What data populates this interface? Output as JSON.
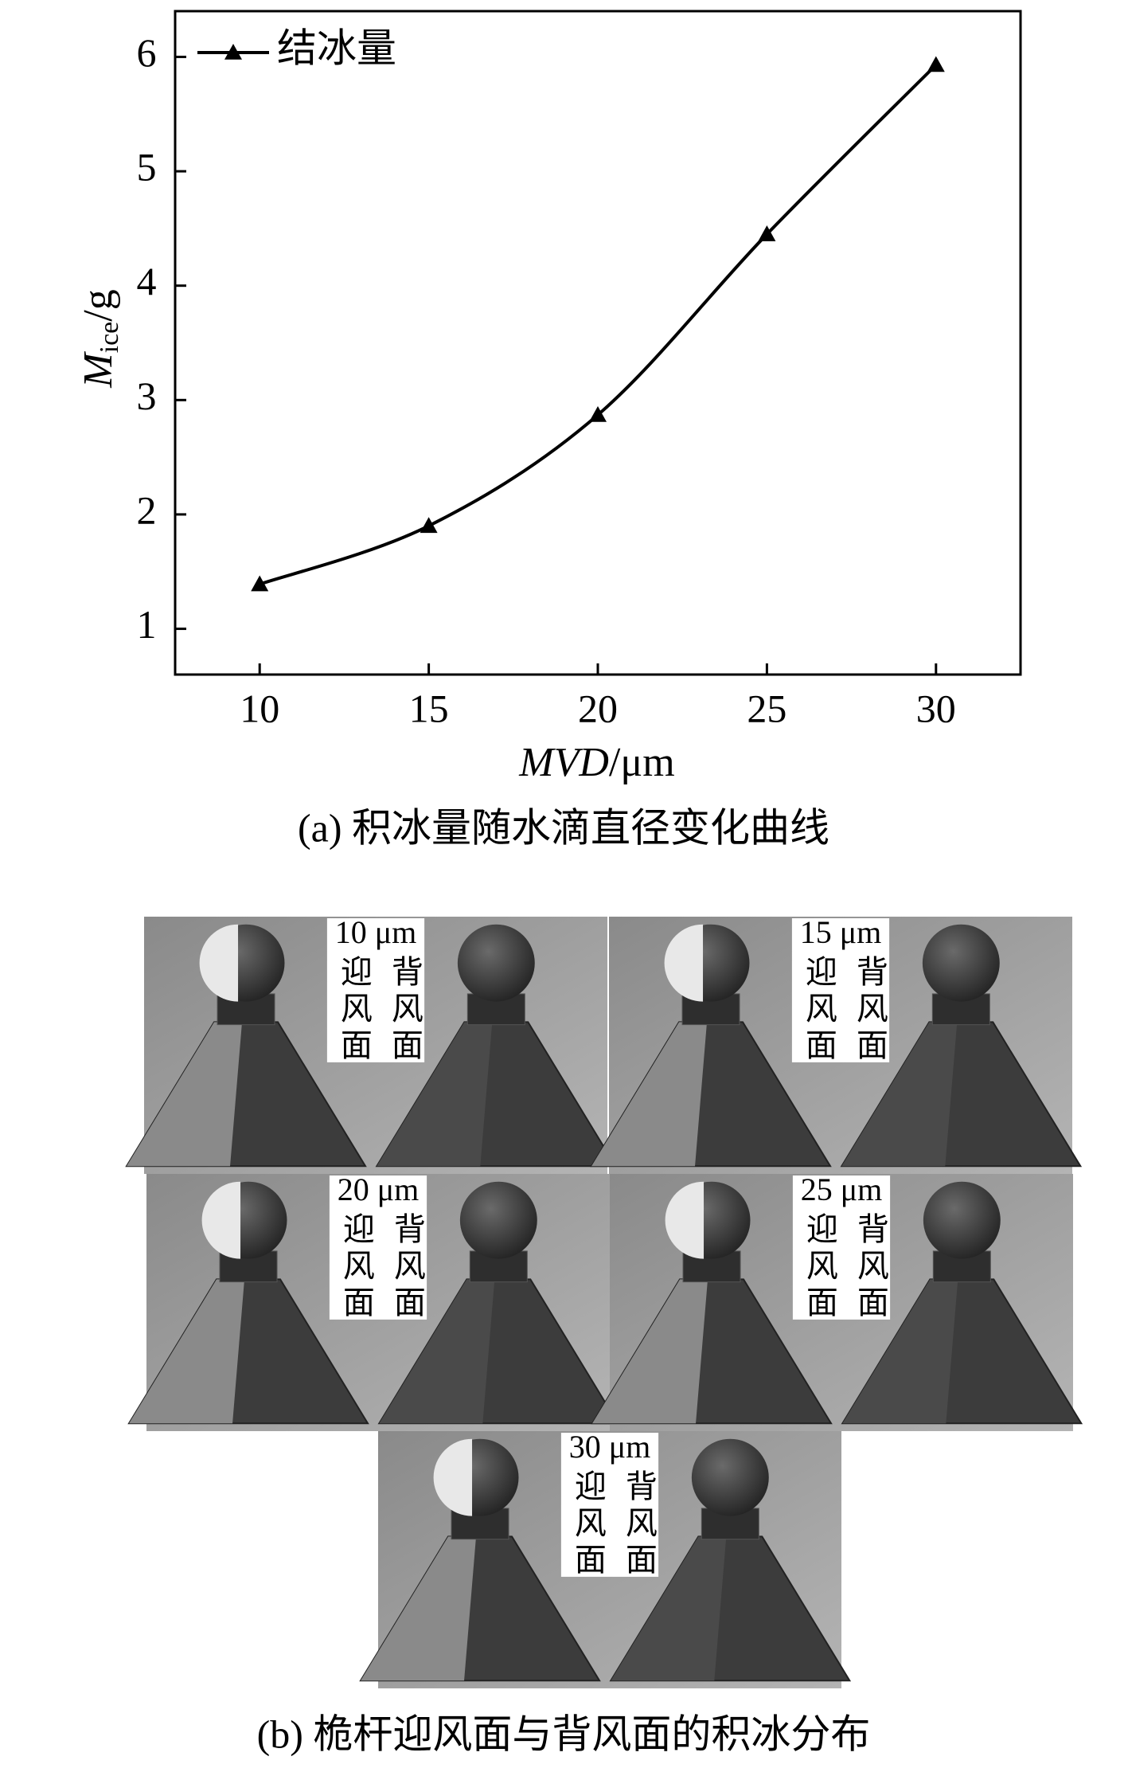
{
  "chart_data": {
    "type": "line",
    "x": [
      10,
      15,
      20,
      25,
      30
    ],
    "series": [
      {
        "name": "结冰量",
        "color": "#000000",
        "values": [
          1.39,
          1.9,
          2.87,
          4.45,
          5.93
        ]
      }
    ],
    "xlim": [
      7.5,
      32.5
    ],
    "xticks": [
      10,
      15,
      20,
      25,
      30
    ],
    "ylim": [
      0.6,
      6.4
    ],
    "yticks": [
      1,
      2,
      3,
      4,
      5,
      6
    ],
    "x_label": {
      "main": "MVD",
      "unit": "/μm"
    },
    "y_label": {
      "main": "M",
      "sub": "ice",
      "unit": "/g"
    },
    "legend": "upper left",
    "caption": "(a) 积冰量随水滴直径变化曲线"
  },
  "figure_b": {
    "caption": "(b) 桅杆迎风面与背风面的积冰分布",
    "panels": [
      {
        "label": "10 μm",
        "front": "迎风面",
        "back": "背风面"
      },
      {
        "label": "15 μm",
        "front": "迎风面",
        "back": "背风面"
      },
      {
        "label": "20 μm",
        "front": "迎风面",
        "back": "背风面"
      },
      {
        "label": "25 μm",
        "front": "迎风面",
        "back": "背风面"
      },
      {
        "label": "30 μm",
        "front": "迎风面",
        "back": "背风面"
      }
    ]
  }
}
